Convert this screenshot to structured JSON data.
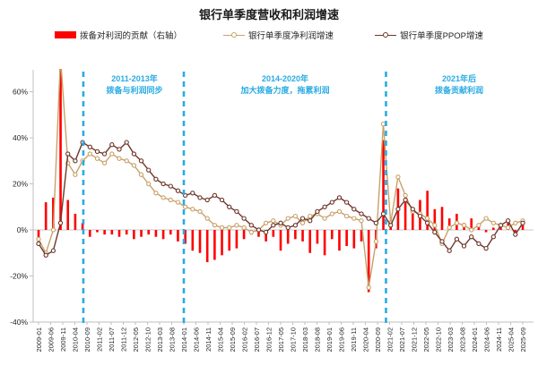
{
  "title": "银行单季度营收和利润增速",
  "legend": [
    {
      "label": "拨备对利润的贡献（右轴）",
      "type": "bar",
      "color": "#ff0000"
    },
    {
      "label": "银行单季度净利润增速",
      "type": "line",
      "color": "#c9a169"
    },
    {
      "label": "银行单季度PPOP增速",
      "type": "line",
      "color": "#6e372a"
    }
  ],
  "annotations": [
    {
      "line1": "2011-2013年",
      "line2": "拨备与利润同步",
      "tick_index": 3.7,
      "center_tick": 7.9
    },
    {
      "line1": "2014-2020年",
      "line2": "加大拨备力度，拖累利润",
      "tick_index": 12.0,
      "center_tick": 20.4
    },
    {
      "line1": "2021年后",
      "line2": "拨备贡献利润",
      "tick_index": 28.7,
      "center_tick": 34.8
    }
  ],
  "colors": {
    "bar": "#ff0000",
    "net_profit_line": "#c9a169",
    "ppop_line": "#6e372a",
    "divider": "#29ABE2",
    "axis": "#bfbfbf",
    "zero_line": "#c9c9c9",
    "tick_text": "#262626"
  },
  "chart_data": {
    "type": "mixed",
    "note_axis": "left axis % for lines; bars read on unlabeled right axis",
    "ylim": [
      -40,
      68
    ],
    "y_ticks": [
      60,
      40,
      20,
      0,
      -20,
      -40
    ],
    "y_tick_labels": [
      "60%",
      "40%",
      "20%",
      "0%",
      "-20%",
      "-40%"
    ],
    "x_tick_labels": [
      "2009-01",
      "2009-06",
      "2009-11",
      "2010-04",
      "2010-09",
      "2011-02",
      "2011-07",
      "2011-12",
      "2012-05",
      "2012-10",
      "2013-03",
      "2013-08",
      "2014-01",
      "2014-06",
      "2014-11",
      "2015-04",
      "2015-09",
      "2016-02",
      "2016-07",
      "2016-12",
      "2017-05",
      "2017-10",
      "2018-03",
      "2018-08",
      "2019-01",
      "2019-06",
      "2019-11",
      "2020-04",
      "2020-09",
      "2021-02",
      "2021-07",
      "2021-12",
      "2022-05",
      "2022-10",
      "2023-03",
      "2023-08",
      "2024-01",
      "2024-06",
      "2024-11",
      "2025-04",
      "2025-09"
    ],
    "quarters": [
      "2009Q1",
      "2009Q2",
      "2009Q3",
      "2009Q4",
      "2010Q1",
      "2010Q2",
      "2010Q3",
      "2010Q4",
      "2011Q1",
      "2011Q2",
      "2011Q3",
      "2011Q4",
      "2012Q1",
      "2012Q2",
      "2012Q3",
      "2012Q4",
      "2013Q1",
      "2013Q2",
      "2013Q3",
      "2013Q4",
      "2014Q1",
      "2014Q2",
      "2014Q3",
      "2014Q4",
      "2015Q1",
      "2015Q2",
      "2015Q3",
      "2015Q4",
      "2016Q1",
      "2016Q2",
      "2016Q3",
      "2016Q4",
      "2017Q1",
      "2017Q2",
      "2017Q3",
      "2017Q4",
      "2018Q1",
      "2018Q2",
      "2018Q3",
      "2018Q4",
      "2019Q1",
      "2019Q2",
      "2019Q3",
      "2019Q4",
      "2020Q1",
      "2020Q2",
      "2020Q3",
      "2020Q4",
      "2021Q1",
      "2021Q2",
      "2021Q3",
      "2021Q4",
      "2022Q1",
      "2022Q2",
      "2022Q3",
      "2022Q4",
      "2023Q1",
      "2023Q2",
      "2023Q3",
      "2023Q4",
      "2024Q1",
      "2024Q2",
      "2024Q3",
      "2024Q4",
      "2025Q1",
      "2025Q2",
      "2025Q3"
    ],
    "series": [
      {
        "name": "拨备对利润的贡献（右轴）",
        "kind": "bar",
        "values": [
          -5,
          12,
          14,
          70,
          13,
          7,
          3,
          -3,
          -1,
          -2,
          -2,
          -3,
          -2,
          -4,
          -3,
          -2,
          -3,
          -4,
          -2,
          -5,
          -6,
          -9,
          -10,
          -14,
          -13,
          -11,
          -9,
          -8,
          -4,
          -2,
          -3,
          -5,
          -3,
          -9,
          -6,
          -4,
          -5,
          -10,
          -6,
          -11,
          -4,
          -9,
          -7,
          -8,
          -5,
          -27,
          -8,
          39,
          4,
          18,
          12,
          8,
          13,
          17,
          9,
          10,
          5,
          7,
          3,
          5,
          2,
          -1,
          1,
          1,
          3,
          -2,
          2
        ]
      },
      {
        "name": "银行单季度净利润增速",
        "kind": "line",
        "values": [
          -4,
          -10,
          0,
          75,
          29,
          24,
          30,
          33,
          31,
          29,
          33,
          31,
          30,
          28,
          24,
          20,
          16,
          14,
          13,
          12,
          10,
          9,
          8,
          5,
          2,
          1,
          1,
          2,
          1,
          -1,
          0,
          3,
          4,
          2,
          5,
          6,
          3,
          6,
          7,
          5,
          7,
          8,
          6,
          5,
          4,
          -25,
          -5,
          46,
          3,
          23,
          15,
          8,
          7,
          5,
          2,
          -6,
          1,
          3,
          2,
          0,
          2,
          5,
          3,
          2,
          1,
          3,
          4
        ]
      },
      {
        "name": "银行单季度PPOP增速",
        "kind": "line",
        "values": [
          -6,
          -11,
          -9,
          3,
          33,
          30,
          38,
          36,
          34,
          33,
          37,
          35,
          38,
          33,
          30,
          26,
          22,
          20,
          19,
          17,
          15,
          16,
          14,
          13,
          15,
          13,
          10,
          8,
          5,
          2,
          0,
          -1,
          2,
          3,
          1,
          2,
          5,
          4,
          8,
          10,
          12,
          14,
          12,
          9,
          7,
          5,
          3,
          7,
          2,
          9,
          13,
          9,
          6,
          3,
          -1,
          -5,
          -9,
          -4,
          -7,
          -3,
          -6,
          -8,
          -3,
          2,
          4,
          -2,
          3
        ]
      }
    ],
    "dividers_tick_index": [
      3.7,
      12.0,
      28.7
    ],
    "legend_position": "top",
    "grid": "off"
  }
}
